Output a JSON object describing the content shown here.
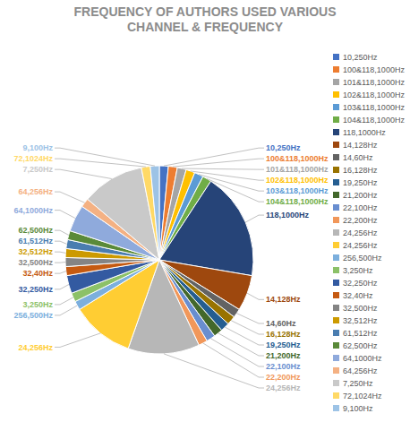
{
  "chart_data": {
    "type": "pie",
    "title": "FREQUENCY OF AUTHORS USED VARIOUS CHANNEL & FREQUENCY",
    "categories": [
      "10,250Hz",
      "100&118,1000Hz",
      "101&118,1000Hz",
      "102&118,1000Hz",
      "103&118,1000Hz",
      "104&118,1000Hz",
      "118,1000Hz",
      "14,128Hz",
      "14,60Hz",
      "16,128Hz",
      "19,250Hz",
      "21,200Hz",
      "22,100Hz",
      "22,200Hz",
      "24,256Hz",
      "24,256Hz",
      "256,500Hz",
      "3,250Hz",
      "32,250Hz",
      "32,40Hz",
      "32,500Hz",
      "32,512Hz",
      "61,512Hz",
      "62,500Hz",
      "64,1000Hz",
      "64,256Hz",
      "7,250Hz",
      "72,1024Hz",
      "9,100Hz"
    ],
    "values": [
      1,
      1,
      1,
      1,
      1,
      1,
      12,
      4,
      1,
      1,
      1,
      1,
      1,
      1,
      8,
      7,
      1,
      1,
      2,
      1,
      1,
      1,
      1,
      1,
      3,
      1,
      7,
      1,
      1
    ],
    "colors": [
      "#4472c4",
      "#ed7d31",
      "#a5a5a5",
      "#ffc000",
      "#5b9bd5",
      "#70ad47",
      "#264478",
      "#9e480e",
      "#636363",
      "#997300",
      "#255e91",
      "#43682b",
      "#698ed0",
      "#f1975a",
      "#b7b7b7",
      "#ffcd33",
      "#7cafdd",
      "#8cc168",
      "#335aa1",
      "#c55a11",
      "#848484",
      "#cc9a00",
      "#4a7db0",
      "#5a8a39",
      "#8faadc",
      "#f4b183",
      "#c9c9c9",
      "#ffd966",
      "#9dc3e6"
    ],
    "legend": "right"
  }
}
